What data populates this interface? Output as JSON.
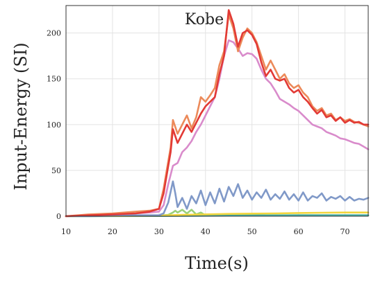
{
  "chart_data": {
    "type": "line",
    "title": "Kobe",
    "xlabel": "Time(s)",
    "ylabel": "Input-Energy (SI)",
    "xlim": [
      10,
      75
    ],
    "ylim": [
      0,
      230
    ],
    "xticks": [
      10,
      20,
      30,
      40,
      50,
      60,
      70
    ],
    "yticks": [
      0,
      50,
      100,
      150,
      200
    ],
    "grid": true,
    "series": [
      {
        "color": "#9bd17a",
        "x": [
          10,
          30,
          31,
          32,
          33,
          33.5,
          34,
          35,
          36,
          37,
          38,
          39,
          40,
          42,
          45,
          50,
          55,
          60,
          65,
          70,
          75
        ],
        "y": [
          0,
          0.5,
          1,
          1.5,
          4,
          6,
          4,
          7,
          3,
          7,
          2,
          4,
          1,
          1.5,
          1,
          1,
          1,
          1,
          1,
          1,
          1
        ]
      },
      {
        "color": "#45b0a8",
        "x": [
          10,
          30,
          40,
          50,
          60,
          70,
          75
        ],
        "y": [
          0,
          0.2,
          0.5,
          0.7,
          1,
          1,
          1
        ]
      },
      {
        "color": "#f2d53c",
        "x": [
          10,
          30,
          35,
          40,
          45,
          50,
          55,
          60,
          65,
          70,
          75
        ],
        "y": [
          0,
          0.5,
          1.5,
          2,
          2.5,
          2.8,
          3,
          3.5,
          3.8,
          4,
          4
        ]
      },
      {
        "color": "#8099c8",
        "x": [
          10,
          15,
          20,
          25,
          28,
          30,
          31,
          32,
          33,
          33.5,
          34,
          35,
          36,
          37,
          38,
          39,
          40,
          41,
          42,
          43,
          44,
          45,
          46,
          47,
          48,
          49,
          50,
          51,
          52,
          53,
          54,
          55,
          56,
          57,
          58,
          59,
          60,
          61,
          62,
          63,
          64,
          65,
          66,
          67,
          68,
          69,
          70,
          71,
          72,
          73,
          74,
          75
        ],
        "y": [
          0,
          0,
          0.5,
          1,
          1,
          1,
          3,
          15,
          38,
          25,
          10,
          20,
          8,
          22,
          14,
          28,
          12,
          26,
          14,
          30,
          16,
          32,
          22,
          35,
          20,
          28,
          18,
          26,
          20,
          29,
          18,
          24,
          19,
          27,
          18,
          24,
          17,
          26,
          17,
          22,
          20,
          25,
          17,
          21,
          19,
          22,
          17,
          21,
          17,
          19,
          18,
          20
        ]
      },
      {
        "color": "#d98bcb",
        "x": [
          10,
          15,
          20,
          25,
          28,
          30,
          31,
          32,
          33,
          34,
          35,
          36,
          37,
          38,
          39,
          40,
          41,
          42,
          43,
          44,
          45,
          46,
          47,
          48,
          49,
          50,
          51,
          52,
          53,
          54,
          55,
          56,
          57,
          58,
          59,
          60,
          61,
          62,
          63,
          64,
          65,
          66,
          67,
          68,
          69,
          70,
          71,
          72,
          73,
          74,
          75
        ],
        "y": [
          0,
          1,
          2,
          3,
          4,
          5,
          12,
          35,
          55,
          58,
          70,
          75,
          82,
          92,
          100,
          110,
          120,
          130,
          150,
          175,
          192,
          190,
          183,
          175,
          178,
          177,
          172,
          160,
          150,
          145,
          137,
          128,
          125,
          122,
          118,
          115,
          110,
          105,
          100,
          98,
          96,
          92,
          90,
          88,
          85,
          84,
          82,
          80,
          79,
          76,
          73
        ]
      },
      {
        "color": "#ec8a5a",
        "x": [
          10,
          15,
          20,
          25,
          28,
          30,
          31,
          32,
          32.5,
          33,
          34,
          35,
          36,
          37,
          38,
          39,
          40,
          41,
          42,
          43,
          44,
          45,
          46,
          47,
          48,
          49,
          50,
          51,
          52,
          53,
          54,
          55,
          56,
          57,
          58,
          59,
          60,
          61,
          62,
          63,
          64,
          65,
          66,
          67,
          68,
          69,
          70,
          71,
          72,
          73,
          74,
          75
        ],
        "y": [
          0,
          2,
          3,
          5,
          6,
          8,
          30,
          60,
          75,
          105,
          90,
          100,
          110,
          96,
          108,
          130,
          125,
          132,
          140,
          165,
          180,
          220,
          205,
          180,
          195,
          205,
          200,
          190,
          175,
          160,
          170,
          160,
          150,
          155,
          145,
          140,
          143,
          135,
          130,
          120,
          115,
          118,
          110,
          112,
          105,
          108,
          104,
          106,
          103,
          102,
          100,
          98
        ]
      },
      {
        "color": "#e23a35",
        "x": [
          10,
          15,
          20,
          25,
          28,
          30,
          31,
          32,
          32.5,
          33,
          34,
          35,
          36,
          37,
          38,
          39,
          40,
          41,
          42,
          43,
          44,
          45,
          46,
          47,
          48,
          49,
          50,
          51,
          52,
          53,
          54,
          55,
          56,
          57,
          58,
          59,
          60,
          61,
          62,
          63,
          64,
          65,
          66,
          67,
          68,
          69,
          70,
          71,
          72,
          73,
          74,
          75
        ],
        "y": [
          0,
          1,
          2,
          3,
          5,
          8,
          25,
          55,
          70,
          95,
          80,
          90,
          100,
          92,
          102,
          112,
          120,
          125,
          130,
          155,
          175,
          225,
          210,
          185,
          200,
          203,
          198,
          188,
          168,
          153,
          160,
          150,
          148,
          150,
          140,
          135,
          138,
          130,
          125,
          118,
          112,
          116,
          108,
          110,
          104,
          108,
          102,
          105,
          102,
          103,
          100,
          100
        ]
      }
    ]
  }
}
